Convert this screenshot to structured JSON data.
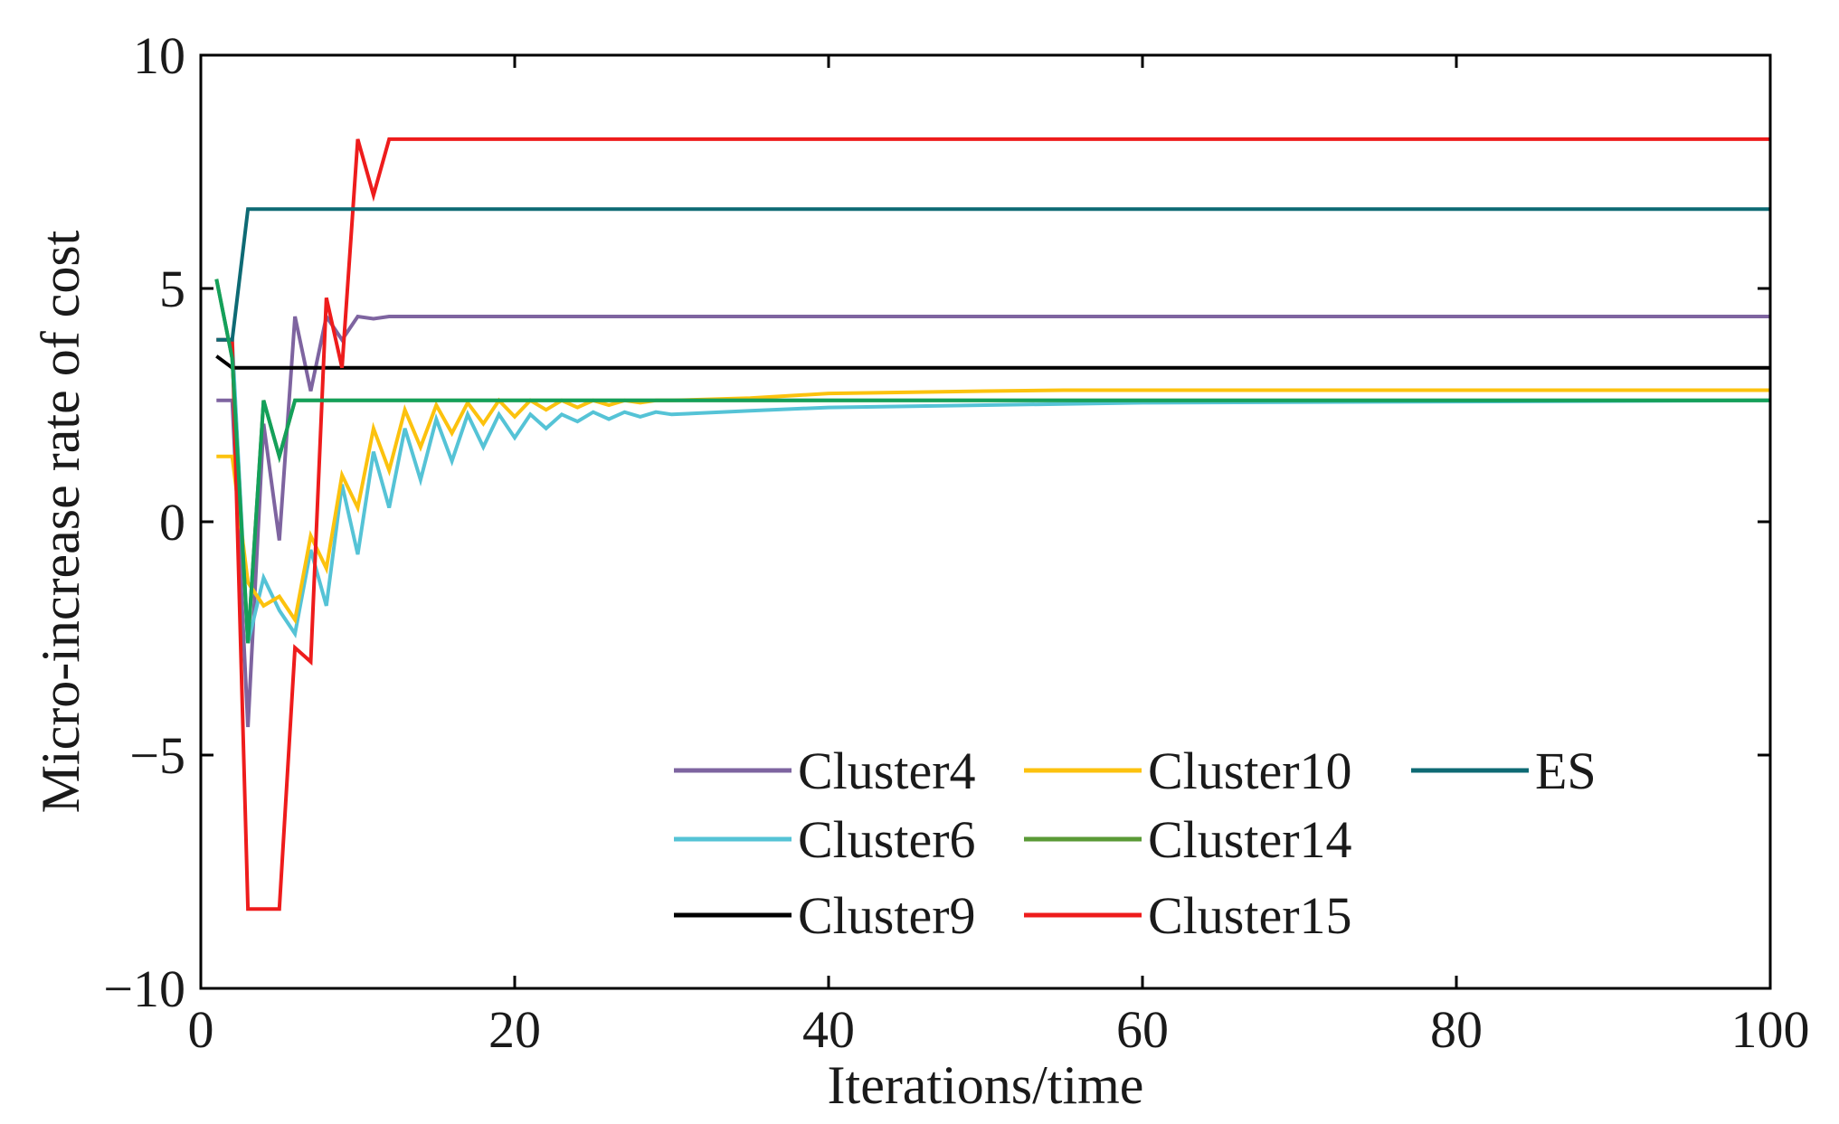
{
  "chart_data": {
    "type": "line",
    "xlabel": "Iterations/time",
    "ylabel": "Micro-increase rate of cost",
    "xlim": [
      0,
      100
    ],
    "ylim": [
      -10,
      10
    ],
    "xticks": [
      0,
      20,
      40,
      60,
      80,
      100
    ],
    "yticks": [
      -10,
      -5,
      0,
      5,
      10
    ],
    "xtick_labels": [
      "0",
      "20",
      "40",
      "60",
      "80",
      "100"
    ],
    "ytick_labels": [
      "−10",
      "−5",
      "0",
      "5",
      "10"
    ],
    "grid": false,
    "legend_position": "bottom-center",
    "series": [
      {
        "name": "Cluster4",
        "color": "#7E64A0",
        "x": [
          1,
          2,
          3,
          4,
          5,
          6,
          7,
          8,
          9,
          10,
          11,
          12,
          100
        ],
        "y": [
          2.6,
          2.6,
          -4.4,
          2.1,
          -0.4,
          4.4,
          2.8,
          4.4,
          3.9,
          4.4,
          4.35,
          4.4,
          4.4
        ]
      },
      {
        "name": "Cluster6",
        "color": "#55C3D6",
        "x": [
          1,
          2,
          3,
          4,
          5,
          6,
          7,
          8,
          9,
          10,
          11,
          12,
          13,
          14,
          15,
          16,
          17,
          18,
          19,
          20,
          21,
          22,
          23,
          24,
          25,
          26,
          27,
          28,
          29,
          30,
          35,
          40,
          50,
          60,
          100
        ],
        "y": [
          3.9,
          3.9,
          -2.6,
          -1.2,
          -1.9,
          -2.4,
          -0.6,
          -1.8,
          0.8,
          -0.7,
          1.5,
          0.3,
          2.0,
          0.9,
          2.2,
          1.3,
          2.3,
          1.6,
          2.3,
          1.8,
          2.3,
          2.0,
          2.3,
          2.15,
          2.35,
          2.2,
          2.35,
          2.25,
          2.35,
          2.3,
          2.38,
          2.45,
          2.5,
          2.55,
          2.6
        ]
      },
      {
        "name": "Cluster9",
        "color": "#000000",
        "x": [
          1,
          2,
          3,
          100
        ],
        "y": [
          3.55,
          3.3,
          3.3,
          3.3
        ]
      },
      {
        "name": "Cluster10",
        "color": "#FCC20E",
        "x": [
          1,
          2,
          3,
          4,
          5,
          6,
          7,
          8,
          9,
          10,
          11,
          12,
          13,
          14,
          15,
          16,
          17,
          18,
          19,
          20,
          21,
          22,
          23,
          24,
          25,
          26,
          27,
          28,
          29,
          30,
          35,
          40,
          50,
          55,
          100
        ],
        "y": [
          1.4,
          1.4,
          -1.3,
          -1.8,
          -1.6,
          -2.1,
          -0.3,
          -1.0,
          1.0,
          0.3,
          2.0,
          1.1,
          2.4,
          1.6,
          2.5,
          1.9,
          2.55,
          2.1,
          2.6,
          2.25,
          2.6,
          2.4,
          2.6,
          2.45,
          2.6,
          2.5,
          2.6,
          2.55,
          2.6,
          2.6,
          2.65,
          2.75,
          2.8,
          2.82,
          2.82
        ]
      },
      {
        "name": "Cluster14",
        "color": "#5A9A36",
        "x": [
          1,
          2,
          3,
          4,
          5,
          6,
          100
        ],
        "y": [
          5.2,
          3.5,
          -2.6,
          2.6,
          1.4,
          2.6,
          2.6
        ]
      },
      {
        "name": "Cluster15",
        "color": "#EE1C1C",
        "x": [
          1,
          2,
          3,
          4,
          5,
          6,
          7,
          8,
          9,
          10,
          11,
          12,
          100
        ],
        "y": [
          3.9,
          3.9,
          -8.3,
          -8.3,
          -8.3,
          -2.7,
          -3.0,
          4.8,
          3.3,
          8.2,
          7.0,
          8.2,
          8.2
        ]
      },
      {
        "name": "ES",
        "color": "#0E6A74",
        "x": [
          1,
          2,
          3,
          100
        ],
        "y": [
          3.9,
          3.9,
          6.7,
          6.7
        ]
      }
    ],
    "overlays": [
      {
        "color": "#14A05A",
        "x": [
          1,
          2,
          3,
          4,
          5,
          6,
          100
        ],
        "y": [
          5.2,
          3.5,
          -2.6,
          2.6,
          1.4,
          2.6,
          2.6
        ]
      }
    ]
  }
}
